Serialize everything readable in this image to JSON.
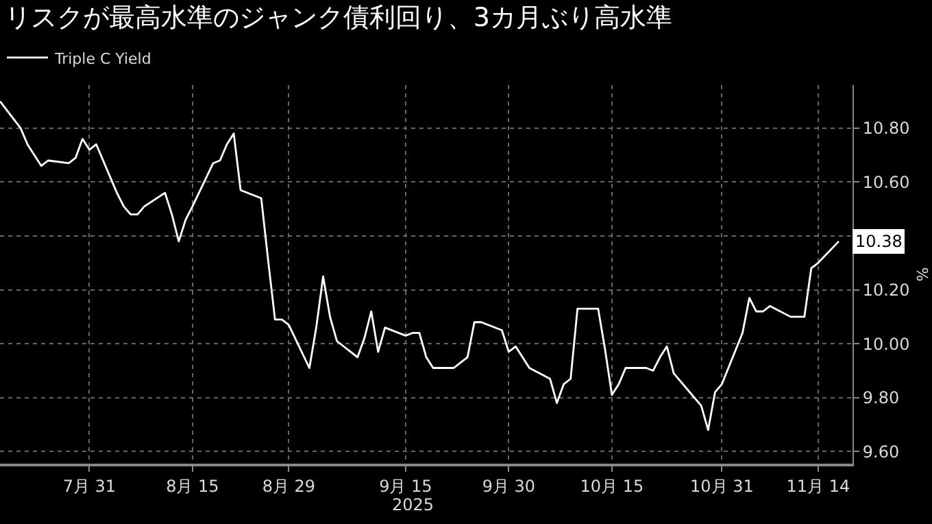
{
  "chart_data": {
    "type": "line",
    "title": "リスクが最高水準のジャンク債利回り、3カ月ぶり高水準",
    "ylabel": "%",
    "annotations": [
      "2025"
    ],
    "x": [
      "2025-07-18",
      "2025-07-21",
      "2025-07-22",
      "2025-07-23",
      "2025-07-24",
      "2025-07-25",
      "2025-07-28",
      "2025-07-29",
      "2025-07-30",
      "2025-07-31",
      "2025-08-01",
      "2025-08-04",
      "2025-08-05",
      "2025-08-06",
      "2025-08-07",
      "2025-08-08",
      "2025-08-11",
      "2025-08-12",
      "2025-08-13",
      "2025-08-14",
      "2025-08-15",
      "2025-08-18",
      "2025-08-19",
      "2025-08-20",
      "2025-08-21",
      "2025-08-22",
      "2025-08-25",
      "2025-08-26",
      "2025-08-27",
      "2025-08-28",
      "2025-08-29",
      "2025-09-01",
      "2025-09-02",
      "2025-09-03",
      "2025-09-04",
      "2025-09-05",
      "2025-09-08",
      "2025-09-09",
      "2025-09-10",
      "2025-09-11",
      "2025-09-12",
      "2025-09-15",
      "2025-09-16",
      "2025-09-17",
      "2025-09-18",
      "2025-09-19",
      "2025-09-22",
      "2025-09-23",
      "2025-09-24",
      "2025-09-25",
      "2025-09-26",
      "2025-09-29",
      "2025-09-30",
      "2025-10-01",
      "2025-10-02",
      "2025-10-03",
      "2025-10-06",
      "2025-10-07",
      "2025-10-08",
      "2025-10-09",
      "2025-10-10",
      "2025-10-13",
      "2025-10-14",
      "2025-10-15",
      "2025-10-16",
      "2025-10-17",
      "2025-10-20",
      "2025-10-21",
      "2025-10-22",
      "2025-10-23",
      "2025-10-24",
      "2025-10-27",
      "2025-10-28",
      "2025-10-29",
      "2025-10-30",
      "2025-10-31",
      "2025-11-03",
      "2025-11-04",
      "2025-11-05",
      "2025-11-06",
      "2025-11-07",
      "2025-11-10",
      "2025-11-11",
      "2025-11-12",
      "2025-11-13",
      "2025-11-14",
      "2025-11-17"
    ],
    "series": [
      {
        "name": "Triple C Yield",
        "color": "#ffffff",
        "values": [
          10.9,
          10.8,
          10.74,
          10.7,
          10.66,
          10.68,
          10.67,
          10.69,
          10.76,
          10.72,
          10.74,
          10.56,
          10.51,
          10.48,
          10.48,
          10.51,
          10.56,
          10.48,
          10.38,
          10.46,
          10.51,
          10.67,
          10.68,
          10.74,
          10.78,
          10.57,
          10.54,
          10.31,
          10.09,
          10.09,
          10.07,
          9.91,
          10.06,
          10.25,
          10.1,
          10.01,
          9.95,
          10.02,
          10.12,
          9.97,
          10.06,
          10.03,
          10.04,
          10.04,
          9.95,
          9.91,
          9.91,
          9.93,
          9.95,
          10.08,
          10.08,
          10.05,
          9.97,
          9.99,
          9.95,
          9.91,
          9.87,
          9.78,
          9.85,
          9.87,
          10.13,
          10.13,
          9.98,
          9.81,
          9.85,
          9.91,
          9.91,
          9.9,
          9.95,
          9.99,
          9.89,
          9.8,
          9.77,
          9.68,
          9.82,
          9.85,
          10.04,
          10.17,
          10.12,
          10.12,
          10.14,
          10.1,
          10.1,
          10.1,
          10.28,
          10.3,
          10.38
        ],
        "value_labels": [
          null,
          null,
          null,
          null,
          null,
          null,
          null,
          null,
          null,
          null,
          null,
          null,
          null,
          null,
          null,
          null,
          null,
          null,
          null,
          null,
          null,
          null,
          null,
          null,
          null,
          null,
          null,
          null,
          null,
          null,
          null,
          null,
          null,
          null,
          null,
          null,
          null,
          null,
          null,
          null,
          null,
          null,
          null,
          null,
          null,
          null,
          null,
          null,
          null,
          null,
          null,
          null,
          null,
          null,
          null,
          null,
          null,
          null,
          null,
          null,
          null,
          null,
          null,
          null,
          null,
          null,
          null,
          null,
          null,
          null,
          null,
          null,
          null,
          null,
          null,
          null,
          null,
          null,
          null,
          null,
          null,
          null,
          null,
          null,
          null,
          null,
          "10.38"
        ]
      }
    ],
    "xlim": [
      "2025-07-18",
      "2025-11-19"
    ],
    "xticks": [
      {
        "value": "2025-07-31",
        "label": "7月 31"
      },
      {
        "value": "2025-08-15",
        "label": "8月 15"
      },
      {
        "value": "2025-08-29",
        "label": "8月 29"
      },
      {
        "value": "2025-09-15",
        "label": "9月 15"
      },
      {
        "value": "2025-09-30",
        "label": "9月 30"
      },
      {
        "value": "2025-10-15",
        "label": "10月 15"
      },
      {
        "value": "2025-10-31",
        "label": "10月 31"
      },
      {
        "value": "2025-11-14",
        "label": "11月 14"
      }
    ],
    "ylim": [
      9.555,
      10.96
    ],
    "yticks": [
      {
        "value": 9.6,
        "label": "9.60"
      },
      {
        "value": 9.8,
        "label": "9.80"
      },
      {
        "value": 10.0,
        "label": "10.00"
      },
      {
        "value": 10.2,
        "label": "10.20"
      },
      {
        "value": 10.4,
        "label": null
      },
      {
        "value": 10.6,
        "label": "10.60"
      },
      {
        "value": 10.8,
        "label": "10.80"
      }
    ],
    "grid": true,
    "legend": "top left",
    "marker": "none",
    "line_style": "solid"
  }
}
